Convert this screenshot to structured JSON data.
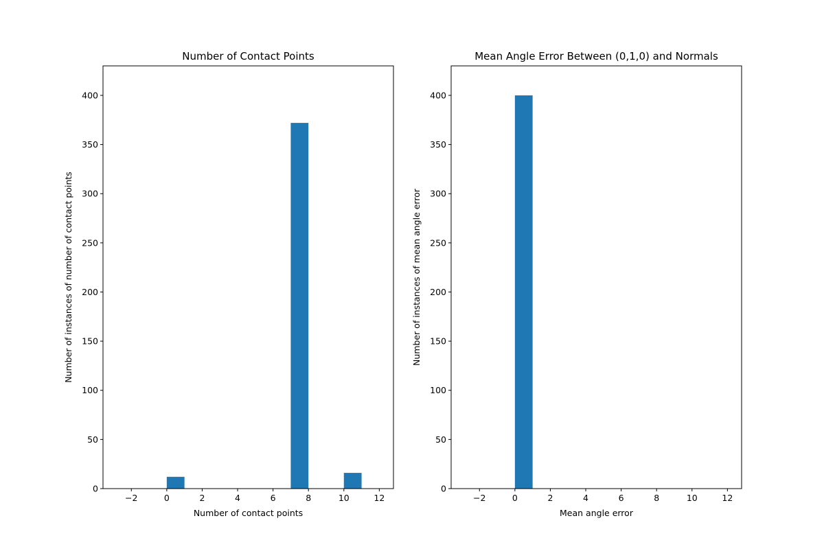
{
  "chart_data": [
    {
      "type": "bar",
      "title": "Number of Contact Points",
      "xlabel": "Number of contact points",
      "ylabel": "Number of instances of number of contact points",
      "xlim": [
        -3.6,
        12.8
      ],
      "ylim": [
        0,
        430
      ],
      "xticks": [
        -2,
        0,
        2,
        4,
        6,
        8,
        10,
        12
      ],
      "yticks": [
        0,
        50,
        100,
        150,
        200,
        250,
        300,
        350,
        400
      ],
      "bar_color": "#1f77b4",
      "bars": [
        {
          "x0": 0,
          "x1": 1,
          "value": 12
        },
        {
          "x0": 7,
          "x1": 8,
          "value": 372
        },
        {
          "x0": 10,
          "x1": 11,
          "value": 16
        }
      ]
    },
    {
      "type": "bar",
      "title": "Mean Angle Error Between (0,1,0) and Normals",
      "xlabel": "Mean angle error",
      "ylabel": "Number of instances of mean angle error",
      "xlim": [
        -3.6,
        12.8
      ],
      "ylim": [
        0,
        430
      ],
      "xticks": [
        -2,
        0,
        2,
        4,
        6,
        8,
        10,
        12
      ],
      "yticks": [
        0,
        50,
        100,
        150,
        200,
        250,
        300,
        350,
        400
      ],
      "bar_color": "#1f77b4",
      "bars": [
        {
          "x0": 0,
          "x1": 1,
          "value": 400
        }
      ]
    }
  ]
}
